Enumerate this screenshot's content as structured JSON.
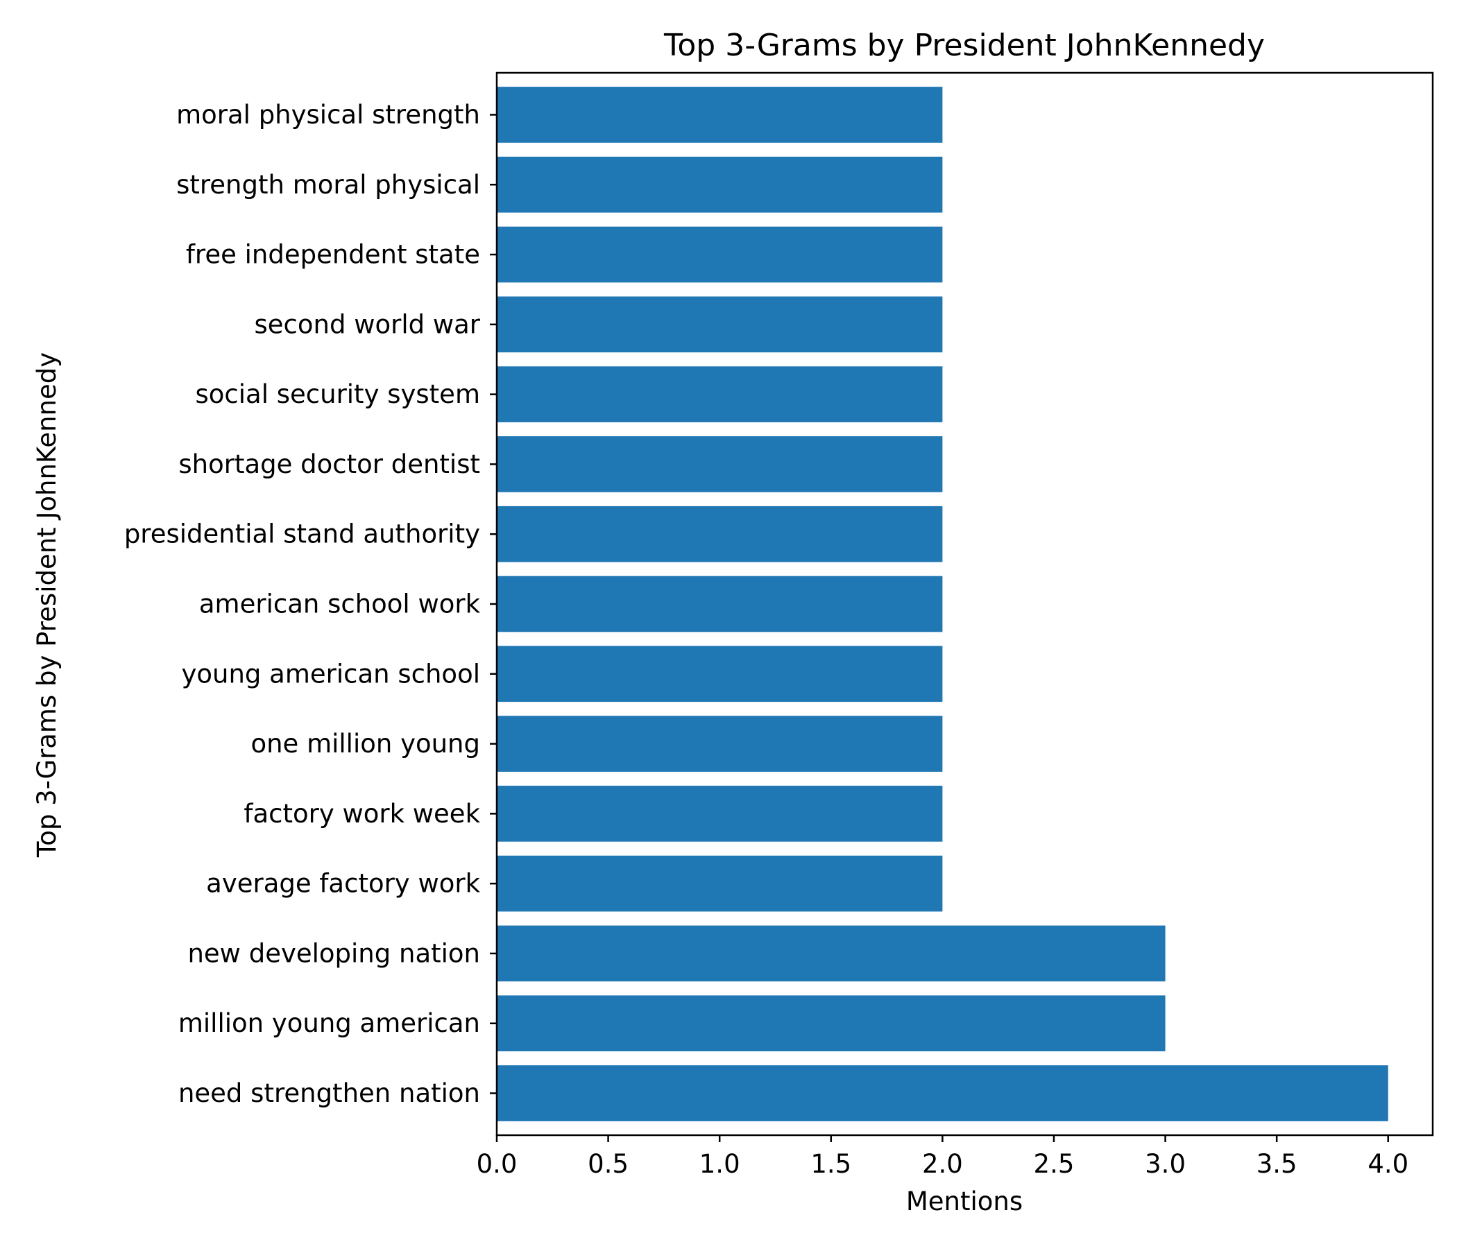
{
  "chart_data": {
    "type": "bar",
    "orientation": "horizontal",
    "title": "Top 3-Grams by President JohnKennedy",
    "xlabel": "Mentions",
    "ylabel": "Top 3-Grams by President JohnKennedy",
    "categories": [
      "need strengthen nation",
      "million young american",
      "new developing nation",
      "average factory work",
      "factory work week",
      "one million young",
      "young american school",
      "american school work",
      "presidential stand authority",
      "shortage doctor dentist",
      "social security system",
      "second world war",
      "free independent state",
      "strength moral physical",
      "moral physical strength"
    ],
    "values": [
      4,
      3,
      3,
      2,
      2,
      2,
      2,
      2,
      2,
      2,
      2,
      2,
      2,
      2,
      2
    ],
    "xlim": [
      0,
      4.2
    ],
    "xticks": [
      "0.0",
      "0.5",
      "1.0",
      "1.5",
      "2.0",
      "2.5",
      "3.0",
      "3.5",
      "4.0"
    ],
    "grid": false,
    "legend": "none",
    "colors": {
      "bar": "#1f77b4",
      "axis": "#000000",
      "background": "#ffffff"
    }
  }
}
